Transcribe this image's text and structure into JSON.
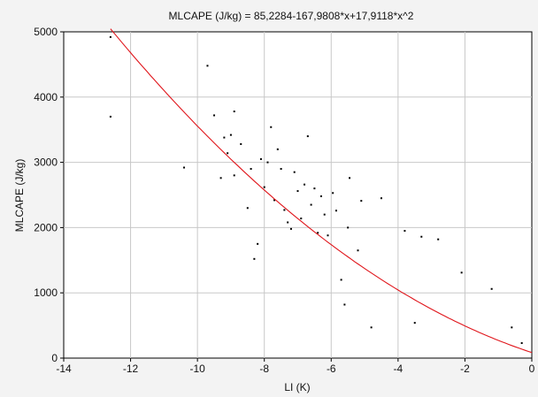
{
  "chart_data": {
    "type": "scatter",
    "title": "MLCAPE (J/kg) = 85,2284-167,9808*x+17,9118*x^2",
    "xlabel": "LI (K)",
    "ylabel": "MLCAPE (J/kg)",
    "xlim": [
      -14,
      0
    ],
    "ylim": [
      0,
      5000
    ],
    "x_ticks": [
      -14,
      -12,
      -10,
      -8,
      -6,
      -4,
      -2,
      0
    ],
    "x_tick_labels": [
      "-14",
      "-12",
      "-10",
      "-8",
      "-6",
      "-4",
      "-2",
      "0"
    ],
    "y_ticks": [
      0,
      1000,
      2000,
      3000,
      4000,
      5000
    ],
    "y_tick_labels": [
      "0",
      "1000",
      "2000",
      "3000",
      "4000",
      "5000"
    ],
    "grid": true,
    "colors": {
      "points": "#000000",
      "fit": "#e0151b",
      "grid": "#c8c8c8",
      "plot_bg": "#ffffff",
      "panel_bg": "#f3f3f3"
    },
    "fit": {
      "form": "quadratic",
      "coefficients": [
        85.2284,
        -167.9808,
        17.9118
      ]
    },
    "series": [
      {
        "points": [
          [
            -12.6,
            4920
          ],
          [
            -12.6,
            3700
          ],
          [
            -10.4,
            2920
          ],
          [
            -9.7,
            4480
          ],
          [
            -9.5,
            3720
          ],
          [
            -9.2,
            3380
          ],
          [
            -9.1,
            3140
          ],
          [
            -9.3,
            2760
          ],
          [
            -9.0,
            3420
          ],
          [
            -8.9,
            3780
          ],
          [
            -8.9,
            2800
          ],
          [
            -8.7,
            3280
          ],
          [
            -8.5,
            2300
          ],
          [
            -8.4,
            2900
          ],
          [
            -8.3,
            1520
          ],
          [
            -8.2,
            1750
          ],
          [
            -8.1,
            3050
          ],
          [
            -8.0,
            2620
          ],
          [
            -7.9,
            3000
          ],
          [
            -7.8,
            3540
          ],
          [
            -7.7,
            2420
          ],
          [
            -7.6,
            3200
          ],
          [
            -7.5,
            2900
          ],
          [
            -7.4,
            2270
          ],
          [
            -7.3,
            2080
          ],
          [
            -7.2,
            1980
          ],
          [
            -7.1,
            2850
          ],
          [
            -7.0,
            2560
          ],
          [
            -6.9,
            2140
          ],
          [
            -6.8,
            2660
          ],
          [
            -6.7,
            3400
          ],
          [
            -6.6,
            2350
          ],
          [
            -6.5,
            2600
          ],
          [
            -6.4,
            1920
          ],
          [
            -6.3,
            2480
          ],
          [
            -6.2,
            2200
          ],
          [
            -6.1,
            1880
          ],
          [
            -5.95,
            2530
          ],
          [
            -5.85,
            2260
          ],
          [
            -5.7,
            1200
          ],
          [
            -5.6,
            820
          ],
          [
            -5.5,
            2000
          ],
          [
            -5.45,
            2760
          ],
          [
            -5.2,
            1650
          ],
          [
            -5.1,
            2410
          ],
          [
            -4.8,
            470
          ],
          [
            -4.5,
            2450
          ],
          [
            -3.8,
            1950
          ],
          [
            -3.5,
            540
          ],
          [
            -3.3,
            1860
          ],
          [
            -2.8,
            1820
          ],
          [
            -2.1,
            1310
          ],
          [
            -1.2,
            1060
          ],
          [
            -0.6,
            470
          ],
          [
            -0.3,
            230
          ]
        ]
      }
    ]
  }
}
